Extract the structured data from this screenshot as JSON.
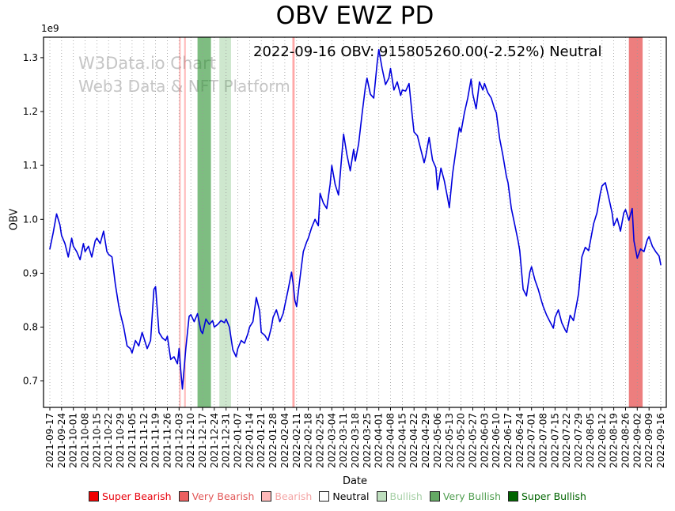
{
  "figure": {
    "title": "OBV EWZ PD",
    "annotation": "2022-09-16 OBV: 915805260.00(-2.52%) Neutral",
    "watermark_line1": "W3Data.io Chart",
    "watermark_line2": "Web3 Data & NFT Platform",
    "offset_text": "1e9",
    "xlabel": "Date",
    "ylabel": "OBV"
  },
  "legend": [
    {
      "label": "Super Bearish",
      "color": "#f00000",
      "text_color": "#e8000b"
    },
    {
      "label": "Very Bearish",
      "color": "#ec6060",
      "text_color": "#e25757"
    },
    {
      "label": "Bearish",
      "color": "#ffb9b9",
      "text_color": "#f4a6a6"
    },
    {
      "label": "Neutral",
      "color": "#ffffff",
      "text_color": "#000000"
    },
    {
      "label": "Bullish",
      "color": "#bedebe",
      "text_color": "#a7d0a7"
    },
    {
      "label": "Very Bullish",
      "color": "#64a964",
      "text_color": "#4f9d4f"
    },
    {
      "label": "Super Bullish",
      "color": "#006400",
      "text_color": "#006400"
    }
  ],
  "chart_data": {
    "type": "line",
    "title": "OBV EWZ PD",
    "xlabel": "Date",
    "ylabel": "OBV",
    "y_unit_multiplier": "1e9",
    "ylim": [
      0.651,
      1.338
    ],
    "yticks": [
      0.7,
      0.8,
      0.9,
      1.0,
      1.1,
      1.2,
      1.3
    ],
    "grid": "vertical-dotted",
    "x_start_date": "2021-09-17",
    "x_tick_interval_days": 7,
    "x_tick_labels": [
      "2021-09-17",
      "2021-09-24",
      "2021-10-01",
      "2021-10-08",
      "2021-10-15",
      "2021-10-22",
      "2021-10-29",
      "2021-11-05",
      "2021-11-12",
      "2021-11-19",
      "2021-11-26",
      "2021-12-03",
      "2021-12-10",
      "2021-12-17",
      "2021-12-24",
      "2021-12-31",
      "2022-01-07",
      "2022-01-14",
      "2022-01-21",
      "2022-01-28",
      "2022-02-04",
      "2022-02-11",
      "2022-02-18",
      "2022-02-25",
      "2022-03-04",
      "2022-03-11",
      "2022-03-18",
      "2022-03-25",
      "2022-04-01",
      "2022-04-08",
      "2022-04-15",
      "2022-04-22",
      "2022-04-29",
      "2022-05-06",
      "2022-05-13",
      "2022-05-20",
      "2022-05-27",
      "2022-06-03",
      "2022-06-10",
      "2022-06-17",
      "2022-06-24",
      "2022-07-01",
      "2022-07-08",
      "2022-07-15",
      "2022-07-22",
      "2022-07-29",
      "2022-08-05",
      "2022-08-12",
      "2022-08-19",
      "2022-08-26",
      "2022-09-02",
      "2022-09-09",
      "2022-09-16"
    ],
    "bands": [
      {
        "label": "Bearish",
        "start_day": 77,
        "end_day": 78,
        "color": "rgba(255,60,60,0.35)"
      },
      {
        "label": "Bearish",
        "start_day": 80,
        "end_day": 81,
        "color": "rgba(255,60,60,0.35)"
      },
      {
        "label": "Very Bullish",
        "start_day": 88,
        "end_day": 96,
        "color": "rgba(40,145,45,0.6)"
      },
      {
        "label": "Bullish",
        "start_day": 101,
        "end_day": 108,
        "color": "rgba(60,160,60,0.25)"
      },
      {
        "label": "Bearish",
        "start_day": 144.5,
        "end_day": 145.8,
        "color": "rgba(255,60,60,0.45)"
      },
      {
        "label": "Very Bearish",
        "start_day": 345,
        "end_day": 353.2,
        "color": "rgba(225,40,40,0.6)"
      }
    ],
    "series": [
      {
        "name": "OBV",
        "color": "#0000dd",
        "x_unit": "days since 2021-09-17",
        "y_unit": "1e9",
        "points": [
          [
            0,
            0.945
          ],
          [
            2,
            0.975
          ],
          [
            4,
            1.01
          ],
          [
            6,
            0.99
          ],
          [
            7,
            0.97
          ],
          [
            9,
            0.955
          ],
          [
            11,
            0.93
          ],
          [
            13,
            0.965
          ],
          [
            14,
            0.95
          ],
          [
            16,
            0.94
          ],
          [
            18,
            0.925
          ],
          [
            20,
            0.955
          ],
          [
            21,
            0.94
          ],
          [
            23,
            0.95
          ],
          [
            25,
            0.93
          ],
          [
            27,
            0.96
          ],
          [
            28,
            0.965
          ],
          [
            30,
            0.955
          ],
          [
            32,
            0.978
          ],
          [
            34,
            0.94
          ],
          [
            35,
            0.935
          ],
          [
            37,
            0.93
          ],
          [
            39,
            0.88
          ],
          [
            41,
            0.84
          ],
          [
            42,
            0.825
          ],
          [
            44,
            0.8
          ],
          [
            46,
            0.765
          ],
          [
            48,
            0.76
          ],
          [
            49,
            0.752
          ],
          [
            51,
            0.775
          ],
          [
            53,
            0.765
          ],
          [
            55,
            0.79
          ],
          [
            56,
            0.78
          ],
          [
            58,
            0.76
          ],
          [
            60,
            0.775
          ],
          [
            62,
            0.87
          ],
          [
            63,
            0.875
          ],
          [
            65,
            0.79
          ],
          [
            67,
            0.78
          ],
          [
            69,
            0.775
          ],
          [
            70,
            0.783
          ],
          [
            72,
            0.74
          ],
          [
            74,
            0.745
          ],
          [
            76,
            0.732
          ],
          [
            77,
            0.76
          ],
          [
            78,
            0.72
          ],
          [
            79,
            0.685
          ],
          [
            81,
            0.76
          ],
          [
            83,
            0.82
          ],
          [
            84,
            0.823
          ],
          [
            86,
            0.81
          ],
          [
            88,
            0.825
          ],
          [
            90,
            0.793
          ],
          [
            91,
            0.788
          ],
          [
            93,
            0.815
          ],
          [
            95,
            0.805
          ],
          [
            97,
            0.812
          ],
          [
            98,
            0.8
          ],
          [
            100,
            0.805
          ],
          [
            102,
            0.812
          ],
          [
            104,
            0.808
          ],
          [
            105,
            0.815
          ],
          [
            107,
            0.8
          ],
          [
            109,
            0.758
          ],
          [
            111,
            0.745
          ],
          [
            112,
            0.76
          ],
          [
            114,
            0.775
          ],
          [
            116,
            0.77
          ],
          [
            118,
            0.788
          ],
          [
            119,
            0.8
          ],
          [
            121,
            0.81
          ],
          [
            123,
            0.855
          ],
          [
            125,
            0.83
          ],
          [
            126,
            0.79
          ],
          [
            128,
            0.785
          ],
          [
            130,
            0.775
          ],
          [
            132,
            0.8
          ],
          [
            133,
            0.818
          ],
          [
            135,
            0.832
          ],
          [
            137,
            0.81
          ],
          [
            139,
            0.825
          ],
          [
            140,
            0.84
          ],
          [
            142,
            0.87
          ],
          [
            144,
            0.902
          ],
          [
            145,
            0.88
          ],
          [
            146,
            0.85
          ],
          [
            147,
            0.838
          ],
          [
            149,
            0.89
          ],
          [
            151,
            0.94
          ],
          [
            153,
            0.958
          ],
          [
            154,
            0.965
          ],
          [
            156,
            0.985
          ],
          [
            158,
            1.0
          ],
          [
            160,
            0.988
          ],
          [
            161,
            1.048
          ],
          [
            163,
            1.03
          ],
          [
            165,
            1.02
          ],
          [
            167,
            1.065
          ],
          [
            168,
            1.1
          ],
          [
            170,
            1.065
          ],
          [
            172,
            1.045
          ],
          [
            174,
            1.12
          ],
          [
            175,
            1.158
          ],
          [
            177,
            1.12
          ],
          [
            179,
            1.09
          ],
          [
            181,
            1.13
          ],
          [
            182,
            1.108
          ],
          [
            184,
            1.14
          ],
          [
            186,
            1.195
          ],
          [
            188,
            1.245
          ],
          [
            189,
            1.262
          ],
          [
            191,
            1.232
          ],
          [
            193,
            1.225
          ],
          [
            195,
            1.29
          ],
          [
            196,
            1.315
          ],
          [
            198,
            1.28
          ],
          [
            200,
            1.25
          ],
          [
            202,
            1.262
          ],
          [
            203,
            1.28
          ],
          [
            205,
            1.24
          ],
          [
            207,
            1.255
          ],
          [
            209,
            1.23
          ],
          [
            210,
            1.24
          ],
          [
            212,
            1.238
          ],
          [
            214,
            1.252
          ],
          [
            216,
            1.19
          ],
          [
            217,
            1.162
          ],
          [
            219,
            1.155
          ],
          [
            221,
            1.13
          ],
          [
            223,
            1.105
          ],
          [
            224,
            1.118
          ],
          [
            226,
            1.152
          ],
          [
            228,
            1.11
          ],
          [
            230,
            1.096
          ],
          [
            231,
            1.055
          ],
          [
            233,
            1.095
          ],
          [
            235,
            1.072
          ],
          [
            237,
            1.04
          ],
          [
            238,
            1.022
          ],
          [
            240,
            1.085
          ],
          [
            242,
            1.13
          ],
          [
            244,
            1.17
          ],
          [
            245,
            1.162
          ],
          [
            247,
            1.198
          ],
          [
            249,
            1.225
          ],
          [
            251,
            1.26
          ],
          [
            252,
            1.232
          ],
          [
            254,
            1.205
          ],
          [
            256,
            1.255
          ],
          [
            258,
            1.24
          ],
          [
            259,
            1.252
          ],
          [
            261,
            1.235
          ],
          [
            263,
            1.225
          ],
          [
            265,
            1.205
          ],
          [
            266,
            1.198
          ],
          [
            268,
            1.15
          ],
          [
            270,
            1.118
          ],
          [
            272,
            1.08
          ],
          [
            273,
            1.068
          ],
          [
            275,
            1.02
          ],
          [
            277,
            0.99
          ],
          [
            279,
            0.96
          ],
          [
            280,
            0.942
          ],
          [
            282,
            0.87
          ],
          [
            284,
            0.858
          ],
          [
            286,
            0.902
          ],
          [
            287,
            0.912
          ],
          [
            289,
            0.888
          ],
          [
            291,
            0.87
          ],
          [
            293,
            0.848
          ],
          [
            294,
            0.838
          ],
          [
            296,
            0.822
          ],
          [
            298,
            0.81
          ],
          [
            300,
            0.798
          ],
          [
            301,
            0.818
          ],
          [
            303,
            0.832
          ],
          [
            305,
            0.808
          ],
          [
            307,
            0.795
          ],
          [
            308,
            0.79
          ],
          [
            310,
            0.822
          ],
          [
            312,
            0.812
          ],
          [
            314,
            0.845
          ],
          [
            315,
            0.862
          ],
          [
            317,
            0.93
          ],
          [
            319,
            0.948
          ],
          [
            321,
            0.942
          ],
          [
            322,
            0.958
          ],
          [
            324,
            0.992
          ],
          [
            326,
            1.012
          ],
          [
            328,
            1.048
          ],
          [
            329,
            1.062
          ],
          [
            331,
            1.068
          ],
          [
            333,
            1.04
          ],
          [
            335,
            1.012
          ],
          [
            336,
            0.988
          ],
          [
            338,
            1.002
          ],
          [
            340,
            0.978
          ],
          [
            342,
            1.012
          ],
          [
            343,
            1.018
          ],
          [
            345,
            0.998
          ],
          [
            347,
            1.02
          ],
          [
            348,
            0.96
          ],
          [
            350,
            0.928
          ],
          [
            352,
            0.945
          ],
          [
            354,
            0.94
          ],
          [
            356,
            0.962
          ],
          [
            357,
            0.968
          ],
          [
            359,
            0.95
          ],
          [
            361,
            0.94
          ],
          [
            363,
            0.932
          ],
          [
            364,
            0.9158
          ]
        ]
      }
    ],
    "legend_entries": [
      "Super Bearish",
      "Very Bearish",
      "Bearish",
      "Neutral",
      "Bullish",
      "Very Bullish",
      "Super Bullish"
    ],
    "legend_position": "bottom"
  }
}
